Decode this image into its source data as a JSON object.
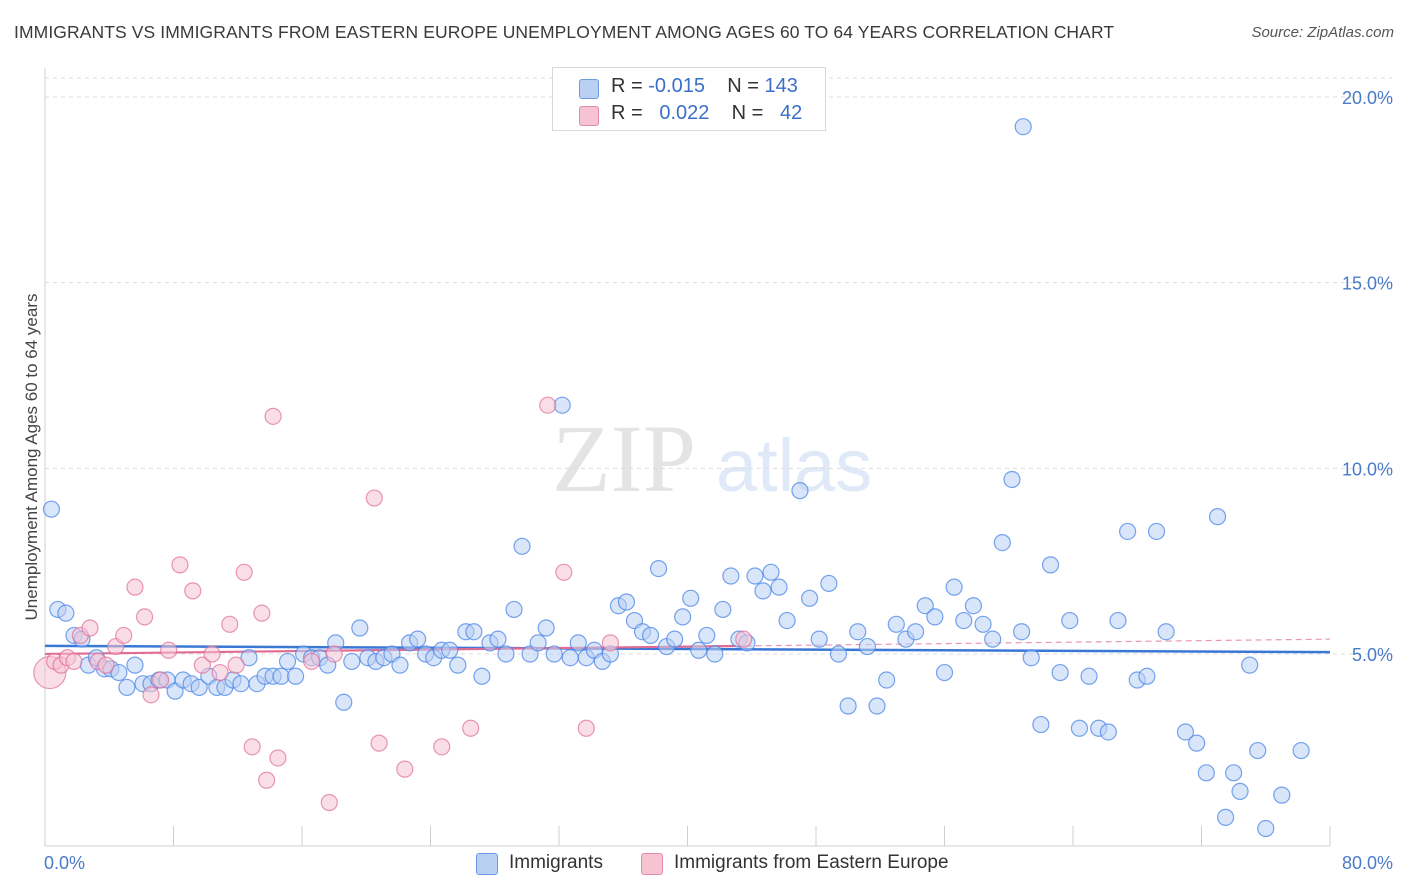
{
  "title": "IMMIGRANTS VS IMMIGRANTS FROM EASTERN EUROPE UNEMPLOYMENT AMONG AGES 60 TO 64 YEARS CORRELATION CHART",
  "source": "Source: ZipAtlas.com",
  "watermark": {
    "zip": "ZIP",
    "atlas": "atlas"
  },
  "legend": {
    "r_label": "R =",
    "n_label": "N =",
    "rows": [
      {
        "r": "-0.015",
        "n": "143"
      },
      {
        "r": "0.022",
        "n": "42"
      }
    ]
  },
  "bottom_legend": [
    "Immigrants",
    "Immigrants from Eastern Europe"
  ],
  "colors": {
    "blue": "#4a86e8",
    "blue_fill": "#b9d0f2",
    "pink": "#e06b95",
    "pink_fill": "#f6c3d3",
    "label": "#4a7bc8"
  },
  "chart_data": {
    "type": "scatter",
    "title": "IMMIGRANTS VS IMMIGRANTS FROM EASTERN EUROPE UNEMPLOYMENT AMONG AGES 60 TO 64 YEARS CORRELATION CHART",
    "xlabel": "",
    "ylabel": "Unemployment Among Ages 60 to 64 years",
    "xlim": [
      0,
      80
    ],
    "ylim": [
      0,
      20.8
    ],
    "x_tick_labels": [
      "0.0%",
      "80.0%"
    ],
    "y_ticks": [
      5,
      10,
      15,
      20
    ],
    "y_tick_labels": [
      "5.0%",
      "10.0%",
      "15.0%",
      "20.0%"
    ],
    "series": [
      {
        "name": "Immigrants",
        "r": -0.015,
        "n": 143,
        "trend": [
          [
            0,
            5.22
          ],
          [
            80,
            5.05
          ]
        ],
        "points": [
          [
            0.4,
            8.9
          ],
          [
            0.8,
            6.2
          ],
          [
            1.3,
            6.1
          ],
          [
            1.8,
            5.5
          ],
          [
            2.3,
            5.4
          ],
          [
            2.7,
            4.7
          ],
          [
            3.2,
            4.9
          ],
          [
            3.7,
            4.6
          ],
          [
            4.1,
            4.6
          ],
          [
            4.6,
            4.5
          ],
          [
            5.1,
            4.1
          ],
          [
            5.6,
            4.7
          ],
          [
            6.1,
            4.2
          ],
          [
            6.6,
            4.2
          ],
          [
            7.1,
            4.3
          ],
          [
            7.6,
            4.3
          ],
          [
            8.1,
            4.0
          ],
          [
            8.6,
            4.3
          ],
          [
            9.1,
            4.2
          ],
          [
            9.6,
            4.1
          ],
          [
            10.2,
            4.4
          ],
          [
            10.7,
            4.1
          ],
          [
            11.2,
            4.1
          ],
          [
            11.7,
            4.3
          ],
          [
            12.2,
            4.2
          ],
          [
            12.7,
            4.9
          ],
          [
            13.2,
            4.2
          ],
          [
            13.7,
            4.4
          ],
          [
            14.2,
            4.4
          ],
          [
            14.7,
            4.4
          ],
          [
            15.1,
            4.8
          ],
          [
            15.6,
            4.4
          ],
          [
            16.1,
            5.0
          ],
          [
            16.6,
            4.9
          ],
          [
            17.1,
            4.9
          ],
          [
            17.6,
            4.7
          ],
          [
            18.1,
            5.3
          ],
          [
            18.6,
            3.7
          ],
          [
            19.1,
            4.8
          ],
          [
            19.6,
            5.7
          ],
          [
            20.1,
            4.9
          ],
          [
            20.6,
            4.8
          ],
          [
            21.1,
            4.9
          ],
          [
            21.6,
            5.0
          ],
          [
            22.1,
            4.7
          ],
          [
            22.7,
            5.3
          ],
          [
            23.2,
            5.4
          ],
          [
            23.7,
            5.0
          ],
          [
            24.2,
            4.9
          ],
          [
            24.7,
            5.1
          ],
          [
            25.2,
            5.1
          ],
          [
            25.7,
            4.7
          ],
          [
            26.2,
            5.6
          ],
          [
            26.7,
            5.6
          ],
          [
            27.2,
            4.4
          ],
          [
            27.7,
            5.3
          ],
          [
            28.2,
            5.4
          ],
          [
            28.7,
            5.0
          ],
          [
            29.2,
            6.2
          ],
          [
            29.7,
            7.9
          ],
          [
            30.2,
            5.0
          ],
          [
            30.7,
            5.3
          ],
          [
            31.2,
            5.7
          ],
          [
            31.7,
            5.0
          ],
          [
            32.2,
            11.7
          ],
          [
            32.7,
            4.9
          ],
          [
            33.2,
            5.3
          ],
          [
            33.7,
            4.9
          ],
          [
            34.2,
            5.1
          ],
          [
            34.7,
            4.8
          ],
          [
            35.2,
            5.0
          ],
          [
            35.7,
            6.3
          ],
          [
            36.2,
            6.4
          ],
          [
            36.7,
            5.9
          ],
          [
            37.2,
            5.6
          ],
          [
            37.7,
            5.5
          ],
          [
            38.2,
            7.3
          ],
          [
            38.7,
            5.2
          ],
          [
            39.2,
            5.4
          ],
          [
            39.7,
            6.0
          ],
          [
            40.2,
            6.5
          ],
          [
            40.7,
            5.1
          ],
          [
            41.2,
            5.5
          ],
          [
            41.7,
            5.0
          ],
          [
            42.2,
            6.2
          ],
          [
            42.7,
            7.1
          ],
          [
            43.2,
            5.4
          ],
          [
            43.7,
            5.3
          ],
          [
            44.2,
            7.1
          ],
          [
            44.7,
            6.7
          ],
          [
            45.2,
            7.2
          ],
          [
            45.7,
            6.8
          ],
          [
            46.2,
            5.9
          ],
          [
            47.0,
            9.4
          ],
          [
            47.6,
            6.5
          ],
          [
            48.2,
            5.4
          ],
          [
            48.8,
            6.9
          ],
          [
            49.4,
            5.0
          ],
          [
            50.0,
            3.6
          ],
          [
            50.6,
            5.6
          ],
          [
            51.2,
            5.2
          ],
          [
            51.8,
            3.6
          ],
          [
            52.4,
            4.3
          ],
          [
            53.0,
            5.8
          ],
          [
            53.6,
            5.4
          ],
          [
            54.2,
            5.6
          ],
          [
            54.8,
            6.3
          ],
          [
            55.4,
            6.0
          ],
          [
            56.0,
            4.5
          ],
          [
            56.6,
            6.8
          ],
          [
            57.2,
            5.9
          ],
          [
            57.8,
            6.3
          ],
          [
            58.4,
            5.8
          ],
          [
            59.0,
            5.4
          ],
          [
            59.6,
            8.0
          ],
          [
            60.2,
            9.7
          ],
          [
            60.8,
            5.6
          ],
          [
            61.4,
            4.9
          ],
          [
            62.0,
            3.1
          ],
          [
            62.6,
            7.4
          ],
          [
            63.2,
            4.5
          ],
          [
            63.8,
            5.9
          ],
          [
            64.4,
            3.0
          ],
          [
            65.0,
            4.4
          ],
          [
            65.6,
            3.0
          ],
          [
            66.2,
            2.9
          ],
          [
            66.8,
            5.9
          ],
          [
            67.4,
            8.3
          ],
          [
            68.0,
            4.3
          ],
          [
            68.6,
            4.4
          ],
          [
            69.2,
            8.3
          ],
          [
            69.8,
            5.6
          ],
          [
            71.0,
            2.9
          ],
          [
            71.7,
            2.6
          ],
          [
            72.3,
            1.8
          ],
          [
            73.0,
            8.7
          ],
          [
            73.5,
            0.6
          ],
          [
            74.0,
            1.8
          ],
          [
            74.4,
            1.3
          ],
          [
            75.0,
            4.7
          ],
          [
            75.5,
            2.4
          ],
          [
            76.0,
            0.3
          ],
          [
            77.0,
            1.2
          ],
          [
            78.2,
            2.4
          ],
          [
            60.9,
            19.2
          ]
        ]
      },
      {
        "name": "Immigrants from Eastern Europe",
        "r": 0.022,
        "n": 42,
        "trend": [
          [
            0,
            5.0
          ],
          [
            80,
            5.4
          ]
        ],
        "points": [
          [
            0.3,
            4.5
          ],
          [
            0.6,
            4.8
          ],
          [
            1.0,
            4.7
          ],
          [
            1.4,
            4.9
          ],
          [
            1.8,
            4.8
          ],
          [
            2.2,
            5.5
          ],
          [
            2.8,
            5.7
          ],
          [
            3.3,
            4.8
          ],
          [
            3.8,
            4.7
          ],
          [
            4.4,
            5.2
          ],
          [
            4.9,
            5.5
          ],
          [
            5.6,
            6.8
          ],
          [
            6.2,
            6.0
          ],
          [
            6.6,
            3.9
          ],
          [
            7.2,
            4.3
          ],
          [
            7.7,
            5.1
          ],
          [
            8.4,
            7.4
          ],
          [
            9.2,
            6.7
          ],
          [
            9.8,
            4.7
          ],
          [
            10.4,
            5.0
          ],
          [
            10.9,
            4.5
          ],
          [
            11.5,
            5.8
          ],
          [
            11.9,
            4.7
          ],
          [
            12.4,
            7.2
          ],
          [
            12.9,
            2.5
          ],
          [
            13.5,
            6.1
          ],
          [
            13.8,
            1.6
          ],
          [
            14.2,
            11.4
          ],
          [
            14.5,
            2.2
          ],
          [
            16.6,
            4.8
          ],
          [
            17.7,
            1.0
          ],
          [
            18.0,
            5.0
          ],
          [
            20.5,
            9.2
          ],
          [
            20.8,
            2.6
          ],
          [
            22.4,
            1.9
          ],
          [
            24.7,
            2.5
          ],
          [
            26.5,
            3.0
          ],
          [
            31.3,
            11.7
          ],
          [
            32.3,
            7.2
          ],
          [
            33.7,
            3.0
          ],
          [
            35.2,
            5.3
          ],
          [
            43.5,
            5.4
          ]
        ]
      }
    ]
  }
}
